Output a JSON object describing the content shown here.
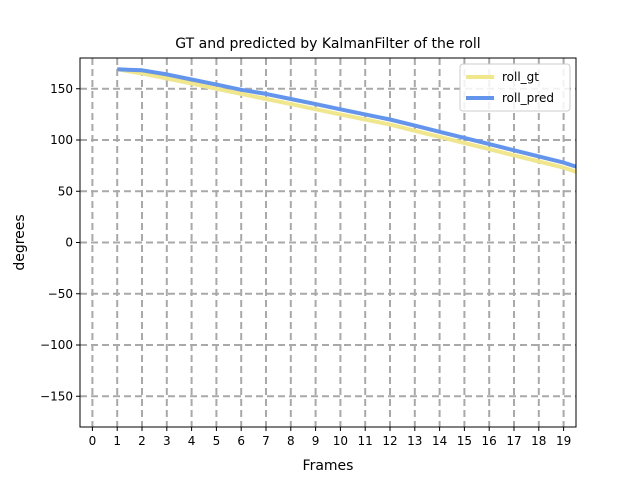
{
  "chart_data": {
    "type": "line",
    "title": "GT and predicted by KalmanFilter of the roll",
    "xlabel": "Frames",
    "ylabel": "degrees",
    "xlim": [
      -0.5,
      19.5
    ],
    "ylim": [
      -180,
      180
    ],
    "xticks": [
      0,
      1,
      2,
      3,
      4,
      5,
      6,
      7,
      8,
      9,
      10,
      11,
      12,
      13,
      14,
      15,
      16,
      17,
      18,
      19
    ],
    "yticks": [
      -150,
      -100,
      -50,
      0,
      50,
      100,
      150
    ],
    "grid": true,
    "legend_position": "top-right",
    "series": [
      {
        "name": "roll_gt",
        "color": "#f0e68c",
        "x": [
          1,
          2,
          3,
          4,
          5,
          6,
          7,
          8,
          9,
          10,
          11,
          12,
          13,
          14,
          15,
          16,
          17,
          18,
          19,
          19.5
        ],
        "values": [
          169,
          165,
          160,
          155,
          150,
          145,
          140,
          135,
          130,
          125,
          120,
          115,
          109,
          103,
          97,
          91,
          85,
          79,
          73,
          69
        ]
      },
      {
        "name": "roll_pred",
        "color": "#6495ed",
        "x": [
          1,
          2,
          3,
          4,
          5,
          6,
          7,
          8,
          9,
          10,
          11,
          12,
          13,
          14,
          15,
          16,
          17,
          18,
          19,
          19.5
        ],
        "values": [
          169,
          168,
          164,
          159,
          154,
          149,
          145,
          140,
          135,
          130,
          125,
          120,
          114,
          108,
          102,
          96,
          90,
          84,
          78,
          74
        ]
      }
    ]
  }
}
